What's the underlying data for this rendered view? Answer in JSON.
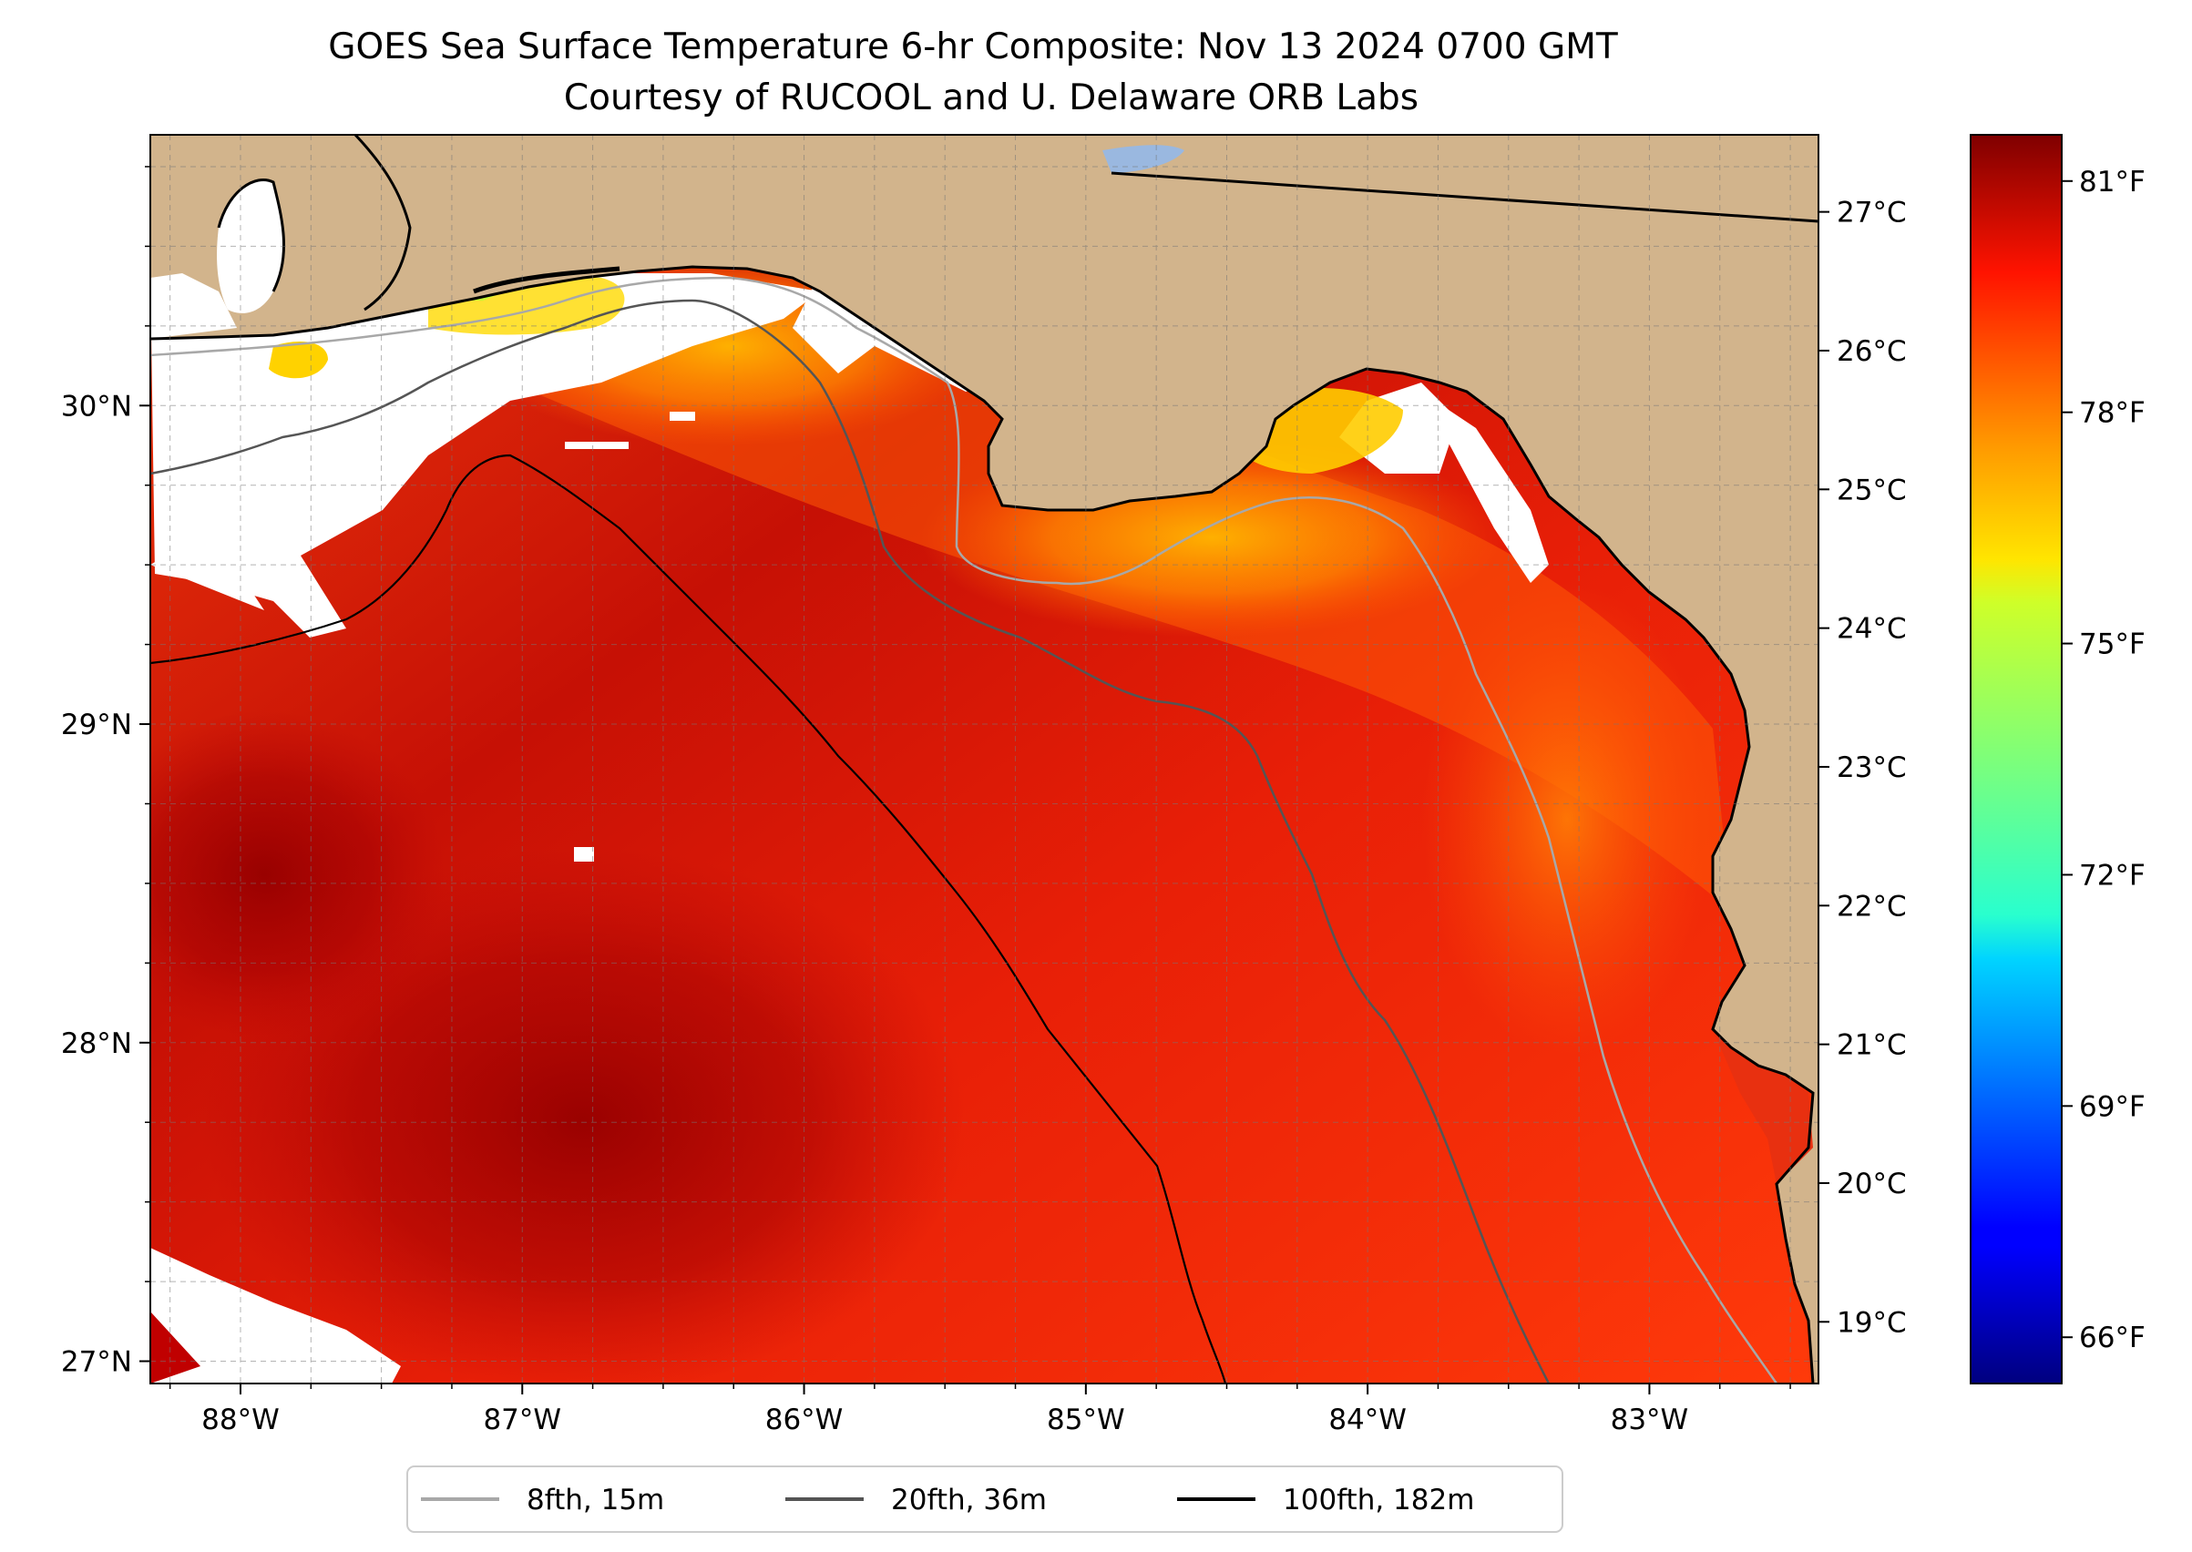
{
  "title": {
    "line1": "GOES Sea Surface Temperature 6-hr Composite: Nov 13 2024 0700 GMT",
    "line2": "Courtesy of RUCOOL and U. Delaware ORB Labs"
  },
  "map": {
    "lon_range": [
      -88.32,
      -82.4
    ],
    "lat_range": [
      26.93,
      30.85
    ],
    "lon_ticks": [
      {
        "value": -88,
        "label": "88°W"
      },
      {
        "value": -87,
        "label": "87°W"
      },
      {
        "value": -86,
        "label": "86°W"
      },
      {
        "value": -85,
        "label": "85°W"
      },
      {
        "value": -84,
        "label": "84°W"
      },
      {
        "value": -83,
        "label": "83°W"
      }
    ],
    "lat_ticks": [
      {
        "value": 30,
        "label": "30°N"
      },
      {
        "value": 29,
        "label": "29°N"
      },
      {
        "value": 28,
        "label": "28°N"
      },
      {
        "value": 27,
        "label": "27°N"
      }
    ],
    "colors": {
      "land": "#d2b48c",
      "nodata": "#ffffff",
      "coast": "#000000",
      "lake": "#9ab8e0"
    }
  },
  "colorbar": {
    "colormap": "jet",
    "celsius_ticks": [
      {
        "value": 27,
        "label": "27°C"
      },
      {
        "value": 26,
        "label": "26°C"
      },
      {
        "value": 25,
        "label": "25°C"
      },
      {
        "value": 24,
        "label": "24°C"
      },
      {
        "value": 23,
        "label": "23°C"
      },
      {
        "value": 22,
        "label": "22°C"
      },
      {
        "value": 21,
        "label": "21°C"
      },
      {
        "value": 20,
        "label": "20°C"
      },
      {
        "value": 19,
        "label": "19°C"
      }
    ],
    "fahrenheit_ticks": [
      {
        "value": 81,
        "label": "81°F"
      },
      {
        "value": 78,
        "label": "78°F"
      },
      {
        "value": 75,
        "label": "75°F"
      },
      {
        "value": 72,
        "label": "72°F"
      },
      {
        "value": 69,
        "label": "69°F"
      },
      {
        "value": 66,
        "label": "66°F"
      }
    ],
    "range_f": [
      65.4,
      81.6
    ]
  },
  "legend": {
    "items": [
      {
        "label": "8fth, 15m",
        "color": "#a8a8a8"
      },
      {
        "label": "20fth, 36m",
        "color": "#555555"
      },
      {
        "label": "100fth, 182m",
        "color": "#000000"
      }
    ]
  }
}
